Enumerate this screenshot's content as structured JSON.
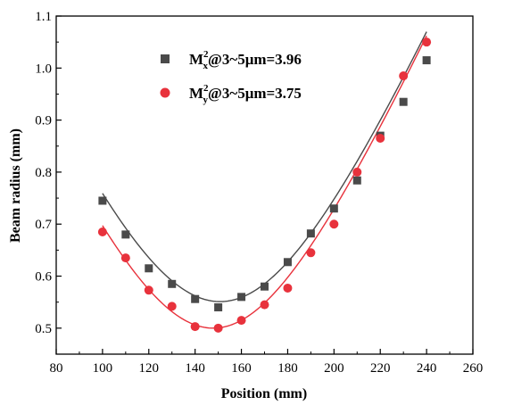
{
  "chart_data": {
    "type": "scatter",
    "xlabel": "Position (mm)",
    "ylabel": "Beam radius (mm)",
    "xlim": [
      80,
      260
    ],
    "ylim": [
      0.45,
      1.1
    ],
    "xticks": [
      80,
      100,
      120,
      140,
      160,
      180,
      200,
      220,
      240,
      260
    ],
    "yticks": [
      0.5,
      0.6,
      0.7,
      0.8,
      0.9,
      1.0,
      1.1
    ],
    "ytick_labels": [
      "0.5",
      "0.6",
      "0.7",
      "0.8",
      "0.9",
      "1.0",
      "1.1"
    ],
    "grid": false,
    "legend_position": "top-left",
    "series": [
      {
        "legend": {
          "base": "M",
          "sup": "2",
          "sub": "x",
          "rest": "@3~5μm=3.96"
        },
        "marker": "square",
        "color": "#4a4a4a",
        "x": [
          100,
          110,
          120,
          130,
          140,
          150,
          160,
          170,
          180,
          190,
          200,
          210,
          220,
          230,
          240
        ],
        "values": [
          0.745,
          0.68,
          0.615,
          0.585,
          0.556,
          0.54,
          0.56,
          0.58,
          0.627,
          0.682,
          0.73,
          0.784,
          0.87,
          0.935,
          1.015
        ],
        "fit": {
          "w0": 0.551,
          "z0": 150.8,
          "zr": 53.6
        }
      },
      {
        "legend": {
          "base": "M",
          "sup": "2",
          "sub": "y",
          "rest": "@3~5μm=3.75"
        },
        "marker": "circle",
        "color": "#e8323c",
        "x": [
          100,
          110,
          120,
          130,
          140,
          150,
          160,
          170,
          180,
          190,
          200,
          210,
          220,
          230,
          240
        ],
        "values": [
          0.685,
          0.635,
          0.573,
          0.542,
          0.503,
          0.5,
          0.515,
          0.545,
          0.577,
          0.645,
          0.7,
          0.8,
          0.865,
          0.985,
          1.05
        ],
        "fit": {
          "w0": 0.5,
          "z0": 147.8,
          "zr": 49.2
        }
      }
    ]
  }
}
